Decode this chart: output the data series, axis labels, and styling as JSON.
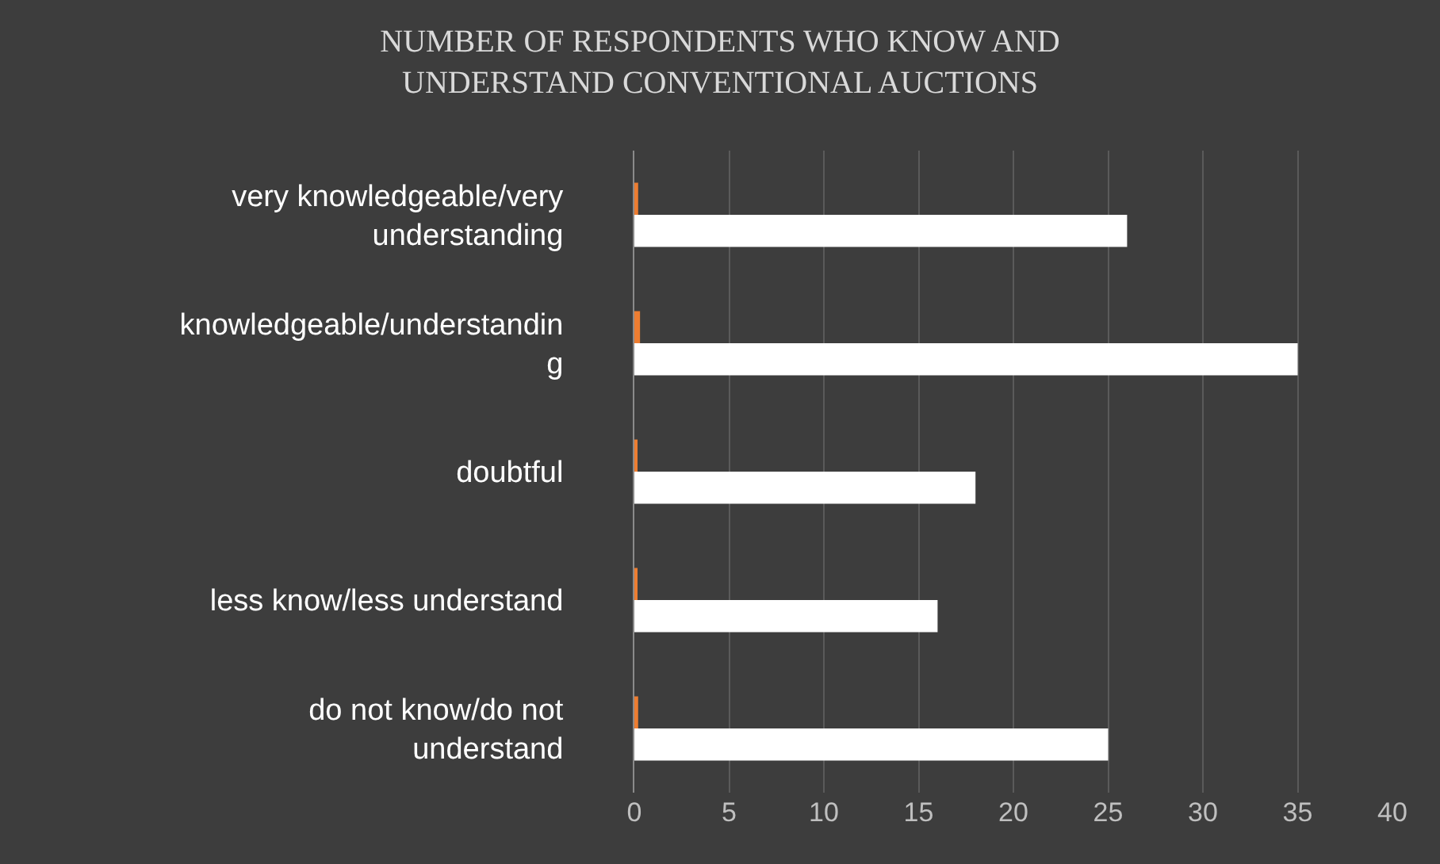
{
  "chart_data": {
    "type": "bar",
    "orientation": "horizontal",
    "title": "NUMBER OF RESPONDENTS WHO KNOW AND UNDERSTAND CONVENTIONAL AUCTIONS",
    "categories": [
      "very knowledgeable/very understanding",
      "knowledgeable/understanding",
      "doubtful",
      "less know/less understand",
      "do not know/do not understand"
    ],
    "series": [
      {
        "color": "#ffffff",
        "values": [
          26,
          35,
          18,
          16,
          25
        ]
      },
      {
        "color": "#ed7d31",
        "values": [
          0.2,
          0.3,
          0.1,
          0.1,
          0.2
        ]
      }
    ],
    "xlim": [
      0,
      40
    ],
    "xticks": [
      0,
      5,
      10,
      15,
      20,
      25,
      30,
      35,
      40
    ],
    "grid": "x"
  }
}
